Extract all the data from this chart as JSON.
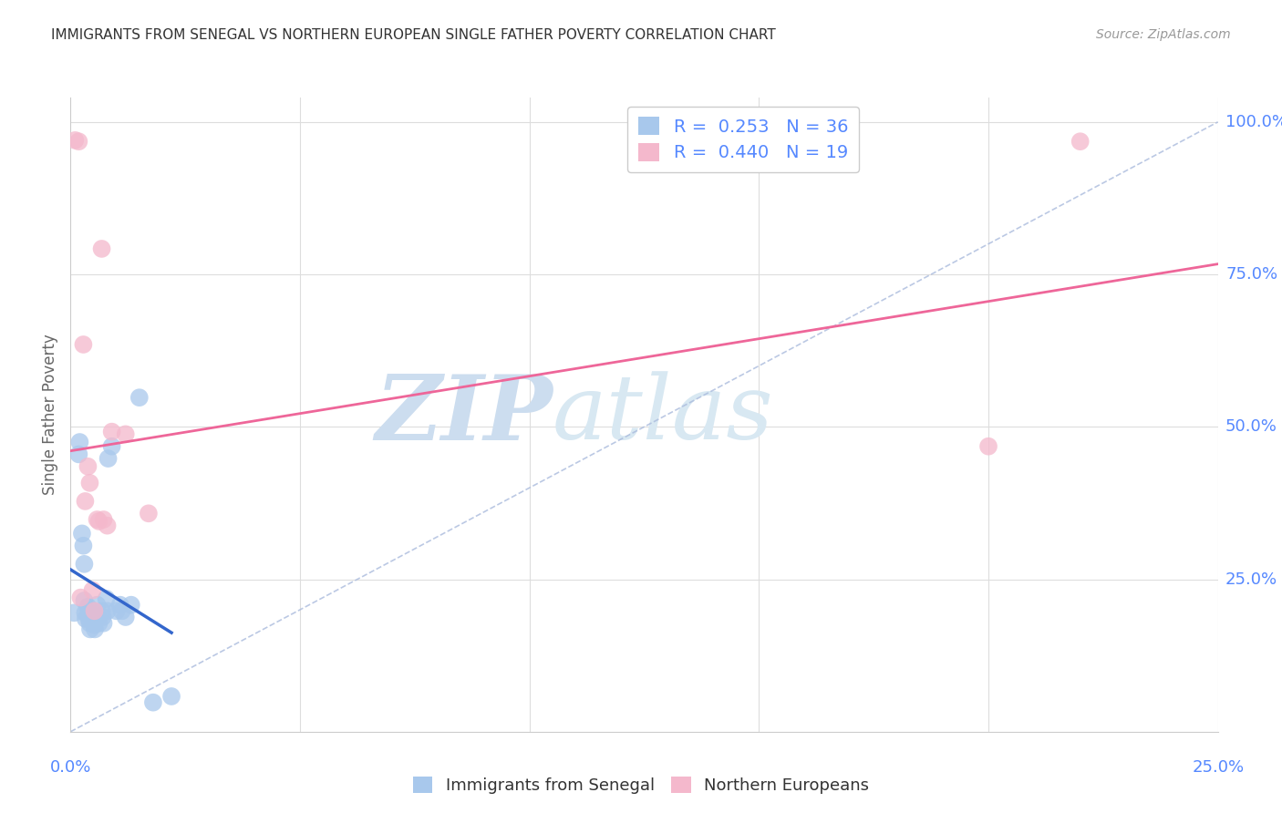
{
  "title": "IMMIGRANTS FROM SENEGAL VS NORTHERN EUROPEAN SINGLE FATHER POVERTY CORRELATION CHART",
  "source": "Source: ZipAtlas.com",
  "ylabel": "Single Father Poverty",
  "xlim": [
    0.0,
    0.25
  ],
  "ylim": [
    0.0,
    1.04
  ],
  "blue_R": "0.253",
  "blue_N": "36",
  "pink_R": "0.440",
  "pink_N": "19",
  "blue_color": "#a8c8ec",
  "pink_color": "#f4b8cc",
  "blue_line_color": "#3366cc",
  "pink_line_color": "#ee6699",
  "dash_color": "#aabbdd",
  "grid_color": "#dddddd",
  "background_color": "#ffffff",
  "title_color": "#333333",
  "source_color": "#999999",
  "axis_label_color": "#5588ff",
  "ylabel_color": "#666666",
  "watermark_zip_color": "#cce4f6",
  "watermark_atlas_color": "#d8e8f0",
  "blue_scatter": [
    [
      0.0008,
      0.195
    ],
    [
      0.0018,
      0.455
    ],
    [
      0.002,
      0.475
    ],
    [
      0.0025,
      0.325
    ],
    [
      0.0028,
      0.305
    ],
    [
      0.003,
      0.275
    ],
    [
      0.003,
      0.215
    ],
    [
      0.0032,
      0.195
    ],
    [
      0.0033,
      0.185
    ],
    [
      0.0038,
      0.205
    ],
    [
      0.004,
      0.195
    ],
    [
      0.004,
      0.185
    ],
    [
      0.0042,
      0.178
    ],
    [
      0.0043,
      0.168
    ],
    [
      0.0048,
      0.198
    ],
    [
      0.005,
      0.188
    ],
    [
      0.0052,
      0.175
    ],
    [
      0.0053,
      0.168
    ],
    [
      0.0058,
      0.208
    ],
    [
      0.006,
      0.188
    ],
    [
      0.0062,
      0.178
    ],
    [
      0.0068,
      0.198
    ],
    [
      0.007,
      0.188
    ],
    [
      0.0072,
      0.178
    ],
    [
      0.0078,
      0.218
    ],
    [
      0.008,
      0.198
    ],
    [
      0.0082,
      0.448
    ],
    [
      0.009,
      0.468
    ],
    [
      0.01,
      0.198
    ],
    [
      0.0108,
      0.208
    ],
    [
      0.0112,
      0.198
    ],
    [
      0.012,
      0.188
    ],
    [
      0.0132,
      0.208
    ],
    [
      0.015,
      0.548
    ],
    [
      0.018,
      0.048
    ],
    [
      0.022,
      0.058
    ]
  ],
  "pink_scatter": [
    [
      0.001,
      0.97
    ],
    [
      0.0018,
      0.968
    ],
    [
      0.0022,
      0.22
    ],
    [
      0.0028,
      0.635
    ],
    [
      0.0032,
      0.378
    ],
    [
      0.0038,
      0.435
    ],
    [
      0.0042,
      0.408
    ],
    [
      0.0048,
      0.232
    ],
    [
      0.0052,
      0.198
    ],
    [
      0.0058,
      0.348
    ],
    [
      0.0062,
      0.345
    ],
    [
      0.0068,
      0.792
    ],
    [
      0.0072,
      0.348
    ],
    [
      0.008,
      0.338
    ],
    [
      0.009,
      0.492
    ],
    [
      0.012,
      0.488
    ],
    [
      0.017,
      0.358
    ],
    [
      0.2,
      0.468
    ],
    [
      0.22,
      0.968
    ]
  ]
}
